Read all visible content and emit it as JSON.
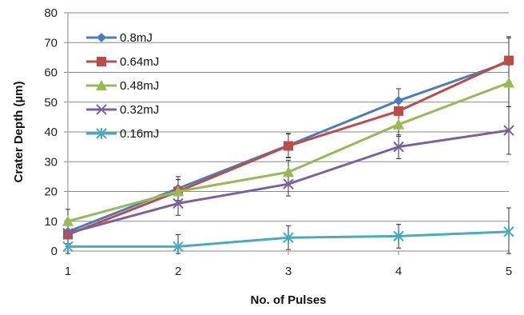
{
  "chart_data": {
    "type": "line",
    "xlabel": "No. of Pulses",
    "ylabel": "Crater Depth (µm)",
    "x": [
      1,
      2,
      3,
      4,
      5
    ],
    "xlim": [
      1,
      5
    ],
    "ylim": [
      0,
      80
    ],
    "yticks": [
      0,
      10,
      20,
      30,
      40,
      50,
      60,
      70,
      80
    ],
    "xticks": [
      1,
      2,
      3,
      4,
      5
    ],
    "grid": "horizontal",
    "legend_position": "top-left",
    "series": [
      {
        "name": "0.8mJ",
        "values": [
          6.5,
          21,
          35.5,
          50.5,
          63.5
        ],
        "color": "#4a7ebb",
        "marker": "diamond"
      },
      {
        "name": "0.64mJ",
        "values": [
          5.5,
          20,
          35.3,
          47,
          64
        ],
        "color": "#be4b48",
        "marker": "square"
      },
      {
        "name": "0.48mJ",
        "values": [
          10,
          20,
          26.5,
          42.5,
          56.5
        ],
        "color": "#98b954",
        "marker": "triangle"
      },
      {
        "name": "0.32mJ",
        "values": [
          6,
          16,
          22.5,
          35,
          40.5
        ],
        "color": "#7d60a0",
        "marker": "x"
      },
      {
        "name": "0.16mJ",
        "values": [
          1.5,
          1.5,
          4.5,
          5,
          6.5
        ],
        "color": "#46aac4",
        "marker": "star"
      }
    ],
    "error_bars": {
      "x": [
        1,
        2,
        3,
        4,
        5
      ],
      "plus_minus": [
        4,
        4,
        4,
        4,
        8
      ]
    }
  }
}
